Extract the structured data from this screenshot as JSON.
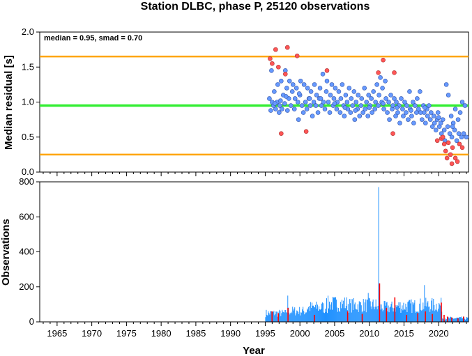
{
  "chart_data": [
    {
      "type": "scatter",
      "title": "Station DLBC, phase P, 25120 observations",
      "ylabel": "Median residual [s]",
      "xlabel": "",
      "xlim": [
        1962.5,
        2024.3
      ],
      "ylim": [
        0,
        2.0
      ],
      "yticks": [
        0.0,
        0.5,
        1.0,
        1.5,
        2.0
      ],
      "annotation": "median = 0.95, smad = 0.70",
      "median": 0.95,
      "upper_bound": 1.65,
      "lower_bound": 0.25,
      "colors": {
        "median_line": "#33ee33",
        "bound_lines": "#ffa500",
        "inlier": "#6699ff",
        "outlier": "#ff5555"
      },
      "inliers": [
        [
          1995.6,
          1.05
        ],
        [
          1995.8,
          0.88
        ],
        [
          1995.9,
          1.45
        ],
        [
          1996.0,
          1.0
        ],
        [
          1996.2,
          0.95
        ],
        [
          1996.3,
          1.15
        ],
        [
          1996.5,
          0.9
        ],
        [
          1996.7,
          1.0
        ],
        [
          1996.8,
          1.25
        ],
        [
          1997.0,
          0.85
        ],
        [
          1997.1,
          0.95
        ],
        [
          1997.3,
          1.3
        ],
        [
          1997.4,
          0.9
        ],
        [
          1997.6,
          1.1
        ],
        [
          1997.8,
          0.98
        ],
        [
          1997.9,
          1.45
        ],
        [
          1998.1,
          1.2
        ],
        [
          1998.2,
          0.88
        ],
        [
          1998.4,
          1.05
        ],
        [
          1998.5,
          1.3
        ],
        [
          1998.7,
          0.95
        ],
        [
          1998.9,
          1.15
        ],
        [
          1999.0,
          1.25
        ],
        [
          1999.2,
          0.9
        ],
        [
          1999.3,
          1.05
        ],
        [
          1999.5,
          1.2
        ],
        [
          1999.7,
          1.0
        ],
        [
          1999.8,
          0.75
        ],
        [
          2000.0,
          1.1
        ],
        [
          2000.1,
          1.3
        ],
        [
          2000.3,
          0.95
        ],
        [
          2000.5,
          0.85
        ],
        [
          2000.6,
          1.25
        ],
        [
          2000.8,
          1.0
        ],
        [
          2001.0,
          0.9
        ],
        [
          2001.1,
          1.2
        ],
        [
          2001.3,
          1.05
        ],
        [
          2001.5,
          0.95
        ],
        [
          2001.6,
          1.15
        ],
        [
          2001.8,
          0.8
        ],
        [
          2002.0,
          1.0
        ],
        [
          2002.1,
          1.25
        ],
        [
          2002.3,
          0.95
        ],
        [
          2002.4,
          1.1
        ],
        [
          2002.6,
          0.85
        ],
        [
          2002.8,
          1.05
        ],
        [
          2002.9,
          1.2
        ],
        [
          2003.1,
          0.95
        ],
        [
          2003.3,
          1.4
        ],
        [
          2003.4,
          1.0
        ],
        [
          2003.6,
          0.9
        ],
        [
          2003.8,
          1.15
        ],
        [
          2003.9,
          1.3
        ],
        [
          2004.1,
          1.0
        ],
        [
          2004.3,
          0.85
        ],
        [
          2004.4,
          1.1
        ],
        [
          2004.6,
          1.25
        ],
        [
          2004.8,
          0.95
        ],
        [
          2004.9,
          1.05
        ],
        [
          2005.1,
          1.2
        ],
        [
          2005.3,
          0.9
        ],
        [
          2005.4,
          1.0
        ],
        [
          2005.6,
          1.15
        ],
        [
          2005.8,
          0.85
        ],
        [
          2005.9,
          1.05
        ],
        [
          2006.1,
          1.25
        ],
        [
          2006.3,
          0.95
        ],
        [
          2006.4,
          0.8
        ],
        [
          2006.6,
          1.1
        ],
        [
          2006.8,
          1.0
        ],
        [
          2006.9,
          0.9
        ],
        [
          2007.1,
          1.2
        ],
        [
          2007.3,
          0.85
        ],
        [
          2007.4,
          1.05
        ],
        [
          2007.6,
          0.95
        ],
        [
          2007.8,
          1.15
        ],
        [
          2007.9,
          0.75
        ],
        [
          2008.1,
          1.0
        ],
        [
          2008.3,
          0.9
        ],
        [
          2008.4,
          1.1
        ],
        [
          2008.6,
          0.8
        ],
        [
          2008.8,
          0.95
        ],
        [
          2008.9,
          1.05
        ],
        [
          2009.1,
          0.85
        ],
        [
          2009.3,
          1.2
        ],
        [
          2009.4,
          0.9
        ],
        [
          2009.6,
          1.0
        ],
        [
          2009.8,
          0.8
        ],
        [
          2009.9,
          1.1
        ],
        [
          2010.1,
          0.95
        ],
        [
          2010.3,
          1.05
        ],
        [
          2010.4,
          0.85
        ],
        [
          2010.6,
          1.15
        ],
        [
          2010.8,
          0.9
        ],
        [
          2010.9,
          1.0
        ],
        [
          2011.1,
          1.25
        ],
        [
          2011.3,
          0.95
        ],
        [
          2011.4,
          1.1
        ],
        [
          2011.6,
          1.35
        ],
        [
          2011.8,
          1.0
        ],
        [
          2011.9,
          1.2
        ],
        [
          2012.1,
          0.9
        ],
        [
          2012.3,
          1.3
        ],
        [
          2012.4,
          1.05
        ],
        [
          2012.6,
          0.85
        ],
        [
          2012.8,
          1.0
        ],
        [
          2012.9,
          0.75
        ],
        [
          2013.1,
          1.1
        ],
        [
          2013.3,
          0.9
        ],
        [
          2013.4,
          0.95
        ],
        [
          2013.6,
          1.05
        ],
        [
          2013.8,
          0.8
        ],
        [
          2013.9,
          1.0
        ],
        [
          2014.1,
          0.85
        ],
        [
          2014.3,
          0.95
        ],
        [
          2014.4,
          0.7
        ],
        [
          2014.6,
          1.05
        ],
        [
          2014.8,
          0.9
        ],
        [
          2014.9,
          0.8
        ],
        [
          2015.1,
          1.0
        ],
        [
          2015.3,
          0.85
        ],
        [
          2015.4,
          0.95
        ],
        [
          2015.6,
          0.75
        ],
        [
          2015.8,
          1.15
        ],
        [
          2015.9,
          0.9
        ],
        [
          2016.1,
          0.8
        ],
        [
          2016.3,
          1.0
        ],
        [
          2016.4,
          0.7
        ],
        [
          2016.6,
          0.95
        ],
        [
          2016.8,
          0.85
        ],
        [
          2016.9,
          1.05
        ],
        [
          2017.1,
          0.9
        ],
        [
          2017.3,
          1.15
        ],
        [
          2017.4,
          0.85
        ],
        [
          2017.6,
          0.75
        ],
        [
          2017.8,
          0.95
        ],
        [
          2017.9,
          0.85
        ],
        [
          2018.1,
          0.7
        ],
        [
          2018.3,
          0.9
        ],
        [
          2018.4,
          0.8
        ],
        [
          2018.6,
          0.95
        ],
        [
          2018.8,
          0.75
        ],
        [
          2018.9,
          0.85
        ],
        [
          2019.1,
          0.65
        ],
        [
          2019.3,
          0.8
        ],
        [
          2019.4,
          0.7
        ],
        [
          2019.6,
          0.6
        ],
        [
          2019.8,
          0.75
        ],
        [
          2019.9,
          0.85
        ],
        [
          2020.1,
          0.65
        ],
        [
          2020.3,
          0.7
        ],
        [
          2020.4,
          0.55
        ],
        [
          2020.6,
          0.75
        ],
        [
          2020.8,
          0.6
        ],
        [
          2020.9,
          0.45
        ],
        [
          2021.1,
          1.25
        ],
        [
          2021.3,
          0.65
        ],
        [
          2021.4,
          1.1
        ],
        [
          2021.6,
          0.55
        ],
        [
          2021.8,
          0.8
        ],
        [
          2021.9,
          0.5
        ],
        [
          2022.1,
          0.7
        ],
        [
          2022.3,
          0.6
        ],
        [
          2022.4,
          0.9
        ],
        [
          2022.6,
          0.45
        ],
        [
          2022.8,
          0.75
        ],
        [
          2022.9,
          0.55
        ],
        [
          2023.1,
          0.85
        ],
        [
          2023.3,
          0.5
        ],
        [
          2023.4,
          1.0
        ],
        [
          2023.6,
          0.55
        ],
        [
          2023.8,
          0.95
        ],
        [
          2024.0,
          0.5
        ],
        [
          1996.4,
          0.98
        ],
        [
          1997.2,
          1.02
        ],
        [
          1998.0,
          1.08
        ],
        [
          1999.9,
          1.12
        ],
        [
          2001.4,
          1.05
        ],
        [
          2003.0,
          1.05
        ],
        [
          2005.0,
          0.98
        ],
        [
          2006.5,
          0.92
        ],
        [
          2008.0,
          0.88
        ],
        [
          2010.0,
          0.92
        ],
        [
          2012.0,
          0.98
        ],
        [
          2014.0,
          0.92
        ],
        [
          2016.0,
          0.88
        ],
        [
          2018.0,
          0.92
        ],
        [
          2020.0,
          0.78
        ],
        [
          2022.0,
          0.65
        ]
      ],
      "outliers": [
        [
          1995.7,
          1.62
        ],
        [
          1996.0,
          1.55
        ],
        [
          1996.5,
          1.75
        ],
        [
          1996.9,
          1.5
        ],
        [
          1997.3,
          0.55
        ],
        [
          1997.9,
          1.4
        ],
        [
          1998.2,
          1.78
        ],
        [
          1999.6,
          1.66
        ],
        [
          2000.9,
          0.58
        ],
        [
          2003.9,
          1.45
        ],
        [
          2011.3,
          1.42
        ],
        [
          2012.0,
          1.6
        ],
        [
          2013.6,
          1.42
        ],
        [
          2013.4,
          0.55
        ],
        [
          2019.8,
          0.45
        ],
        [
          2020.4,
          0.48
        ],
        [
          2020.8,
          0.4
        ],
        [
          2021.0,
          0.3
        ],
        [
          2021.2,
          0.2
        ],
        [
          2021.4,
          0.42
        ],
        [
          2021.7,
          0.25
        ],
        [
          2022.0,
          0.35
        ],
        [
          2022.4,
          0.2
        ],
        [
          2022.7,
          0.15
        ],
        [
          2023.0,
          0.4
        ],
        [
          2023.4,
          0.35
        ],
        [
          2020.6,
          0.5
        ],
        [
          2021.9,
          0.12
        ]
      ]
    },
    {
      "type": "bar",
      "title": "",
      "ylabel": "Observations",
      "xlabel": "Year",
      "xlim": [
        1962.5,
        2024.3
      ],
      "ylim": [
        0,
        800
      ],
      "yticks": [
        0,
        200,
        400,
        600,
        800
      ],
      "xticks": [
        1965,
        1970,
        1975,
        1980,
        1985,
        1990,
        1995,
        2000,
        2005,
        2010,
        2015,
        2020
      ],
      "colors": {
        "bars": "#1e90ff",
        "outlier_bars": "#ff0000"
      },
      "bin_width_years": 0.1,
      "segments": [
        {
          "x_start": 1995.0,
          "x_end": 1998.0,
          "count": 60
        },
        {
          "x_start": 1998.0,
          "x_end": 2001.0,
          "count": 75
        },
        {
          "x_start": 2001.0,
          "x_end": 2004.0,
          "count": 100
        },
        {
          "x_start": 2004.0,
          "x_end": 2007.0,
          "count": 125
        },
        {
          "x_start": 2007.0,
          "x_end": 2011.0,
          "count": 115
        },
        {
          "x_start": 2011.0,
          "x_end": 2014.0,
          "count": 100
        },
        {
          "x_start": 2014.0,
          "x_end": 2017.0,
          "count": 110
        },
        {
          "x_start": 2017.0,
          "x_end": 2020.5,
          "count": 115
        },
        {
          "x_start": 2020.5,
          "x_end": 2024.3,
          "count": 25
        }
      ],
      "peaks": [
        [
          2011.3,
          770
        ],
        [
          2011.4,
          220
        ],
        [
          2017.9,
          210
        ],
        [
          1998.2,
          150
        ],
        [
          2003.8,
          135
        ],
        [
          2009.8,
          165
        ],
        [
          2013.6,
          140
        ]
      ],
      "outlier_bars": [
        [
          1995.9,
          60
        ],
        [
          1996.8,
          50
        ],
        [
          1998.2,
          80
        ],
        [
          2002.0,
          40
        ],
        [
          2006.8,
          60
        ],
        [
          2008.9,
          45
        ],
        [
          2011.4,
          220
        ],
        [
          2012.4,
          80
        ],
        [
          2013.6,
          140
        ],
        [
          2015.3,
          40
        ],
        [
          2016.9,
          50
        ],
        [
          2018.0,
          60
        ],
        [
          2019.0,
          45
        ],
        [
          2020.3,
          110
        ],
        [
          2020.7,
          40
        ],
        [
          2021.2,
          30
        ],
        [
          2021.8,
          25
        ],
        [
          2022.7,
          20
        ],
        [
          2023.5,
          30
        ]
      ]
    }
  ]
}
